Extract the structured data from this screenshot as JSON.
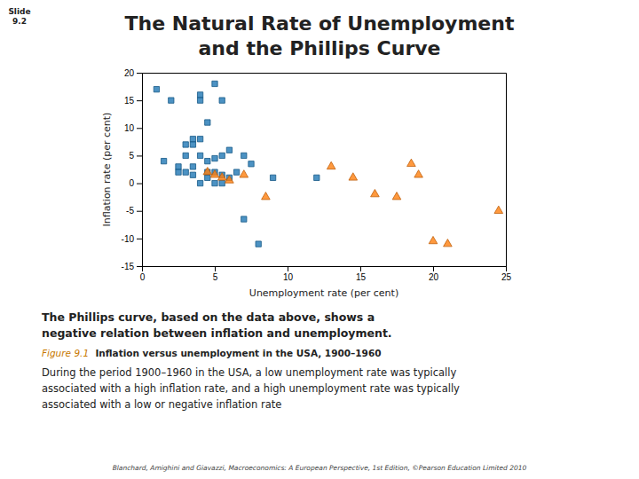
{
  "chart_data": {
    "type": "scatter",
    "title": [
      "The Natural Rate of Unemployment",
      "and the Phillips Curve"
    ],
    "x_label": "Unemployment rate (per cent)",
    "y_label": "Inflation rate (per cent)",
    "xlim": [
      0,
      25
    ],
    "ylim": [
      -15,
      20
    ],
    "xticks": [
      0,
      5,
      10,
      15,
      20,
      25
    ],
    "yticks": [
      -15,
      -10,
      -5,
      0,
      5,
      10,
      15,
      20
    ],
    "grid": false,
    "series": [
      {
        "marker": "square",
        "x": [
          1.0,
          1.5,
          2.0,
          2.5,
          2.5,
          3.0,
          3.0,
          3.0,
          3.5,
          3.5,
          3.5,
          3.5,
          4.0,
          4.0,
          4.0,
          4.0,
          4.0,
          4.5,
          4.5,
          4.5,
          4.5,
          5.0,
          5.0,
          5.0,
          5.0,
          5.5,
          5.5,
          5.5,
          5.5,
          6.0,
          6.0,
          6.5,
          7.0,
          7.0,
          7.5,
          8.0,
          9.0,
          12.0
        ],
        "values": [
          17.0,
          4.0,
          15.0,
          3.0,
          2.0,
          7.0,
          5.0,
          2.0,
          8.0,
          7.0,
          3.0,
          1.5,
          16.0,
          15.0,
          8.0,
          5.0,
          0.0,
          11.0,
          4.0,
          2.0,
          1.0,
          18.0,
          4.5,
          2.0,
          0.0,
          15.0,
          5.0,
          1.5,
          0.0,
          6.0,
          1.0,
          2.0,
          5.0,
          -6.5,
          3.5,
          -11.0,
          1.0,
          1.0
        ]
      },
      {
        "marker": "triangle",
        "x": [
          4.5,
          5.0,
          5.5,
          6.0,
          7.0,
          8.5,
          13.0,
          14.5,
          16.0,
          17.5,
          18.5,
          19.0,
          20.0,
          21.0,
          24.5
        ],
        "values": [
          2.0,
          1.5,
          1.0,
          0.5,
          1.5,
          -2.5,
          3.0,
          1.0,
          -2.0,
          -2.5,
          3.5,
          1.5,
          -10.5,
          -11.0,
          -5.0
        ]
      }
    ],
    "annotations": [
      "Slide",
      "9.2",
      "The Phillips curve, based on the data above, shows a",
      "negative relation between inflation and unemployment.",
      "Figure 9.1",
      "  Inflation versus unemployment in the USA, 1900–1960",
      "During the period 1900–1960 in the USA, a low unemployment rate was typically",
      "associated with a high inflation rate, and a high unemployment rate was typically",
      "associated with a low or negative inflation rate",
      "Blanchard, Amighini and Giavazzi, Macroeconomics: A European Perspective, 1st Edition, ©Pearson Education Limited 2010"
    ]
  }
}
